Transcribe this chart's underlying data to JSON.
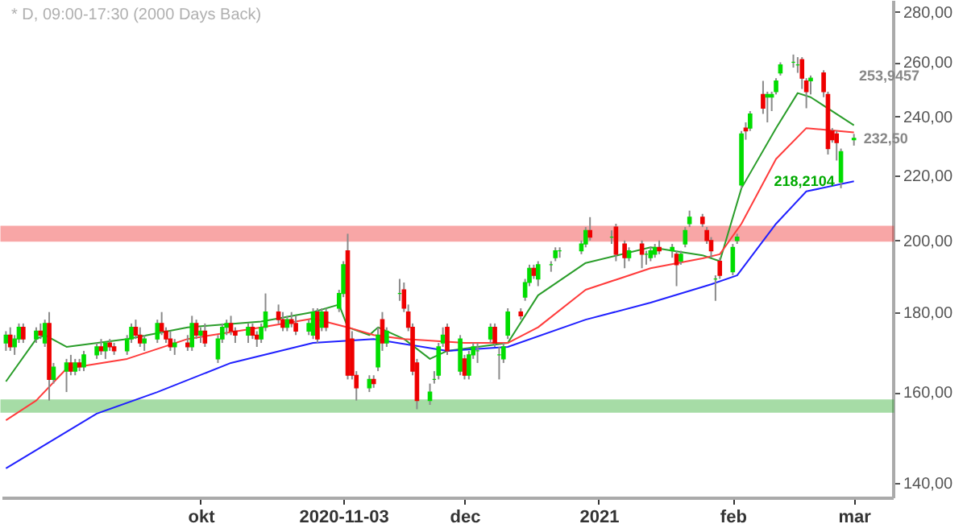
{
  "chart_data": {
    "type": "candlestick",
    "title": "* D, 09:00-17:30 (2000 Days Back)",
    "colors": [
      "#00dd00",
      "#ee0000",
      "#00dd00",
      "#00dd00",
      "#ee0000",
      "#00dd00",
      "#ee0000",
      "#00dd00",
      "#ee0000",
      "#00dd00",
      "#00dd00",
      "#ee0000",
      "#00dd00",
      "#ee0000",
      "#00dd00",
      "#00dd00",
      "#ee0000",
      "#00dd00",
      "#ee0000",
      "#ee0000",
      "#00dd00",
      "#00dd00",
      "#ee0000",
      "#ee0000",
      "#00dd00",
      "#00dd00",
      "#ee0000",
      "#ee0000",
      "#ee0000",
      "#00dd00",
      "#ee0000",
      "#00dd00",
      "#ee0000",
      "#00dd00",
      "#ee0000",
      "#00dd00",
      "#00dd00",
      "#00dd00",
      "#ee0000",
      "#ee0000",
      "#00dd00",
      "#ee0000",
      "#ee0000",
      "#00dd00",
      "#00dd00",
      "#ee0000",
      "#ee0000",
      "#00dd00",
      "#ee0000",
      "#ee0000",
      "#00dd00",
      "#00dd00",
      "#ee0000",
      "#00dd00",
      "#ee0000",
      "#00dd00",
      "#00dd00",
      "#ee0000",
      "#ee0000",
      "#ee0000",
      "#00dd00",
      "#ee0000",
      "#00dd00",
      "#ee0000",
      "#00dd00",
      "#00dd00",
      "#ee0000",
      "#ee0000",
      "#ee0000",
      "#ee0000",
      "#00dd00",
      "#00dd00",
      "#00dd00",
      "#00dd00",
      "#ee0000",
      "#00dd00",
      "#ee0000",
      "#00dd00",
      "#00dd00",
      "#00dd00",
      "#00dd00",
      "#ee0000",
      "#00dd00",
      "#00dd00",
      "#00dd00",
      "#ee0000",
      "#00dd00",
      "#00dd00",
      "#ee0000",
      "#00dd00",
      "#00dd00",
      "#00dd00",
      "#00dd00",
      "#00dd00",
      "#00dd00",
      "#ee0000",
      "#00dd00",
      "#ee0000",
      "#ee0000",
      "#00dd00",
      "#ee0000",
      "#00dd00",
      "#00dd00",
      "#00dd00",
      "#ee0000",
      "#00dd00",
      "#ee0000",
      "#00dd00",
      "#00dd00",
      "#00dd00",
      "#ee0000",
      "#ee0000",
      "#ee0000",
      "#00dd00",
      "#ee0000",
      "#00dd00",
      "#00dd00",
      "#00dd00",
      "#ee0000",
      "#00dd00",
      "#ee0000",
      "#00dd00",
      "#00dd00",
      "#00dd00",
      "#00dd00",
      "#00dd00",
      "#00dd00",
      "#ee0000",
      "#ee0000",
      "#00dd00",
      "#ee0000",
      "#ee0000",
      "#ee0000",
      "#ee0000",
      "#00dd00",
      "#00dd00"
    ],
    "ohlc": [
      [
        172,
        175,
        170,
        174
      ],
      [
        174,
        176,
        170,
        171
      ],
      [
        171,
        174,
        169,
        173
      ],
      [
        173,
        177,
        172,
        176
      ],
      [
        176,
        177,
        172,
        173
      ],
      [
        173,
        176,
        172,
        175
      ],
      [
        175,
        177,
        173,
        174
      ],
      [
        172,
        178,
        171,
        177
      ],
      [
        177,
        180,
        158,
        163
      ],
      [
        163,
        167,
        162,
        166
      ],
      [
        165,
        168,
        160,
        167
      ],
      [
        167,
        169,
        164,
        165
      ],
      [
        165,
        168,
        164,
        167
      ],
      [
        167,
        168,
        165,
        166
      ],
      [
        166,
        170,
        165,
        169
      ],
      [
        169,
        172,
        168,
        171
      ],
      [
        171,
        173,
        169,
        170
      ],
      [
        170,
        172,
        168,
        172
      ],
      [
        172,
        173,
        170,
        171
      ],
      [
        171,
        172,
        169,
        170
      ],
      [
        170,
        174,
        169,
        173
      ],
      [
        173,
        177,
        172,
        176
      ],
      [
        176,
        178,
        173,
        174
      ],
      [
        174,
        176,
        171,
        172
      ],
      [
        172,
        174,
        170,
        173
      ],
      [
        173,
        178,
        172,
        177
      ],
      [
        177,
        180,
        174,
        175
      ],
      [
        175,
        176,
        172,
        173
      ],
      [
        173,
        175,
        170,
        171
      ],
      [
        171,
        173,
        169,
        172
      ],
      [
        172,
        174,
        170,
        171
      ],
      [
        171,
        179,
        170,
        177
      ],
      [
        177,
        178,
        173,
        174
      ],
      [
        174,
        176,
        172,
        175
      ],
      [
        175,
        177,
        171,
        172
      ],
      [
        168,
        174,
        167,
        173
      ],
      [
        173,
        177,
        172,
        176
      ],
      [
        176,
        178,
        174,
        177
      ],
      [
        177,
        179,
        174,
        175
      ],
      [
        175,
        176,
        172,
        174
      ],
      [
        174,
        177,
        172,
        176
      ],
      [
        176,
        177,
        173,
        174
      ],
      [
        174,
        175,
        171,
        173
      ],
      [
        173,
        177,
        172,
        176
      ],
      [
        176,
        185,
        175,
        180
      ],
      [
        180,
        182,
        177,
        178
      ],
      [
        178,
        180,
        175,
        176
      ],
      [
        176,
        179,
        175,
        178
      ],
      [
        178,
        180,
        176,
        177
      ],
      [
        177,
        179,
        174,
        175
      ],
      [
        175,
        178,
        174,
        177
      ],
      [
        174,
        181,
        173,
        180
      ],
      [
        180,
        181,
        172,
        173
      ],
      [
        176,
        181,
        175,
        180
      ],
      [
        180,
        181,
        175,
        176
      ],
      [
        181,
        186,
        180,
        185
      ],
      [
        185,
        194,
        184,
        193
      ],
      [
        197,
        202,
        163,
        164
      ],
      [
        173,
        175,
        163,
        164
      ],
      [
        164,
        165,
        158,
        161
      ],
      [
        161,
        164,
        160,
        163
      ],
      [
        163,
        164,
        161,
        162
      ],
      [
        166,
        176,
        165,
        174
      ],
      [
        178,
        180,
        170,
        172
      ],
      [
        172,
        176,
        171,
        175
      ],
      [
        185,
        189,
        183,
        185
      ],
      [
        186,
        188,
        180,
        181
      ],
      [
        180,
        182,
        175,
        176
      ],
      [
        176,
        177,
        164,
        165
      ],
      [
        167,
        168,
        156,
        158
      ],
      [
        158,
        162,
        157,
        160
      ],
      [
        163,
        165,
        162,
        163
      ],
      [
        164,
        172,
        163,
        171
      ],
      [
        172,
        176,
        171,
        174
      ],
      [
        176,
        177,
        169,
        170
      ],
      [
        165,
        174,
        164,
        173
      ],
      [
        168,
        169,
        163,
        164
      ],
      [
        164,
        170,
        163,
        169
      ],
      [
        169,
        172,
        168,
        171
      ],
      [
        170,
        172,
        167,
        170
      ],
      [
        173,
        177,
        172,
        176
      ],
      [
        176,
        177,
        171,
        172
      ],
      [
        169,
        171,
        163,
        169
      ],
      [
        168,
        172,
        167,
        171
      ],
      [
        174,
        181,
        173,
        180
      ],
      [
        180,
        181,
        178,
        179
      ],
      [
        184,
        189,
        183,
        188
      ],
      [
        188,
        193,
        187,
        192
      ],
      [
        192,
        193,
        189,
        190
      ],
      [
        189,
        194,
        187,
        193
      ],
      [
        193,
        194,
        191,
        193
      ],
      [
        195,
        198,
        194,
        197
      ],
      [
        197,
        198,
        195,
        197
      ],
      [
        197,
        200,
        196,
        199
      ],
      [
        199,
        204,
        198,
        203
      ],
      [
        203,
        207,
        200,
        201
      ],
      [
        201,
        203,
        199,
        201
      ],
      [
        204,
        205,
        194,
        196
      ],
      [
        199,
        200,
        192,
        195
      ],
      [
        195,
        198,
        194,
        197
      ],
      [
        199,
        200,
        192,
        196
      ],
      [
        196,
        197,
        193,
        196
      ],
      [
        195,
        198,
        194,
        197
      ],
      [
        196,
        199,
        195,
        198
      ],
      [
        198,
        200,
        196,
        197
      ],
      [
        197,
        199,
        195,
        198
      ],
      [
        196,
        197,
        187,
        193
      ],
      [
        194,
        197,
        193,
        196
      ],
      [
        199,
        204,
        198,
        203
      ],
      [
        205,
        209,
        204,
        207
      ],
      [
        207,
        208,
        204,
        205
      ],
      [
        203,
        204,
        199,
        200
      ],
      [
        200,
        201,
        195,
        197
      ],
      [
        189,
        190,
        183,
        189
      ],
      [
        194,
        195,
        189,
        190
      ],
      [
        191,
        199,
        190,
        198
      ],
      [
        200,
        202,
        199,
        201
      ],
      [
        217,
        235,
        216,
        234
      ],
      [
        236,
        238,
        232,
        235
      ],
      [
        236,
        242,
        235,
        241
      ],
      [
        248,
        253,
        241,
        243
      ],
      [
        247,
        249,
        238,
        248
      ],
      [
        247,
        249,
        242,
        248
      ],
      [
        249,
        254,
        248,
        253
      ],
      [
        256,
        260,
        255,
        259
      ],
      [
        260,
        263,
        258,
        260
      ],
      [
        259,
        262,
        256,
        259
      ],
      [
        261,
        262,
        250,
        254
      ],
      [
        253,
        254,
        243,
        249
      ],
      [
        253,
        255,
        248,
        254
      ],
      [
        256,
        257,
        247,
        249
      ],
      [
        248,
        249,
        227,
        229
      ],
      [
        235,
        236,
        231,
        232
      ],
      [
        234,
        235,
        225,
        231
      ],
      [
        218,
        229,
        216,
        228
      ],
      [
        232,
        234,
        230,
        232.5
      ]
    ],
    "x": [
      "2020-08-17",
      "2020-08-18",
      "2020-08-19",
      "2020-08-20",
      "2020-08-21",
      "2020-08-24",
      "2020-08-25",
      "2020-08-26",
      "2020-08-27",
      "2020-08-28",
      "2020-08-31",
      "2020-09-01",
      "2020-09-02",
      "2020-09-03",
      "2020-09-04",
      "2020-09-07",
      "2020-09-08",
      "2020-09-09",
      "2020-09-10",
      "2020-09-11",
      "2020-09-14",
      "2020-09-15",
      "2020-09-16",
      "2020-09-17",
      "2020-09-18",
      "2020-09-21",
      "2020-09-22",
      "2020-09-23",
      "2020-09-24",
      "2020-09-25",
      "2020-09-28",
      "2020-09-29",
      "2020-09-30",
      "2020-10-01",
      "2020-10-02",
      "2020-10-05",
      "2020-10-06",
      "2020-10-07",
      "2020-10-08",
      "2020-10-09",
      "2020-10-12",
      "2020-10-13",
      "2020-10-14",
      "2020-10-15",
      "2020-10-16",
      "2020-10-19",
      "2020-10-20",
      "2020-10-21",
      "2020-10-22",
      "2020-10-23",
      "2020-10-26",
      "2020-10-27",
      "2020-10-28",
      "2020-10-29",
      "2020-10-30",
      "2020-11-02",
      "2020-11-03",
      "2020-11-04",
      "2020-11-05",
      "2020-11-06",
      "2020-11-09",
      "2020-11-10",
      "2020-11-11",
      "2020-11-12",
      "2020-11-13",
      "2020-11-16",
      "2020-11-17",
      "2020-11-18",
      "2020-11-19",
      "2020-11-20",
      "2020-11-23",
      "2020-11-24",
      "2020-11-25",
      "2020-11-26",
      "2020-11-27",
      "2020-11-30",
      "2020-12-01",
      "2020-12-02",
      "2020-12-03",
      "2020-12-04",
      "2020-12-07",
      "2020-12-08",
      "2020-12-09",
      "2020-12-10",
      "2020-12-11",
      "2020-12-14",
      "2020-12-15",
      "2020-12-16",
      "2020-12-17",
      "2020-12-18",
      "2020-12-21",
      "2020-12-22",
      "2020-12-23",
      "2020-12-28",
      "2020-12-29",
      "2020-12-30",
      "2021-01-04",
      "2021-01-05",
      "2021-01-07",
      "2021-01-08",
      "2021-01-11",
      "2021-01-12",
      "2021-01-13",
      "2021-01-14",
      "2021-01-15",
      "2021-01-18",
      "2021-01-19",
      "2021-01-20",
      "2021-01-21",
      "2021-01-22",
      "2021-01-25",
      "2021-01-26",
      "2021-01-27",
      "2021-01-28",
      "2021-01-29",
      "2021-02-01",
      "2021-02-02",
      "2021-02-03",
      "2021-02-04",
      "2021-02-05",
      "2021-02-08",
      "2021-02-09",
      "2021-02-10",
      "2021-02-11",
      "2021-02-12",
      "2021-02-15",
      "2021-02-16",
      "2021-02-17",
      "2021-02-18",
      "2021-02-19",
      "2021-02-22",
      "2021-02-23",
      "2021-02-24",
      "2021-02-25",
      "2021-02-26",
      "2021-03-01"
    ],
    "series": [
      {
        "type": "line",
        "color": "#2a9d2a",
        "x": [
          "2020-08-17",
          "2020-08-24",
          "2020-08-26",
          "2020-08-31",
          "2020-09-14",
          "2020-09-28",
          "2020-10-15",
          "2020-10-27",
          "2020-11-02",
          "2020-11-04",
          "2020-11-09",
          "2020-11-11",
          "2020-11-17",
          "2020-11-23",
          "2020-11-27",
          "2020-12-11",
          "2020-12-18",
          "2020-12-29",
          "2021-01-13",
          "2021-01-25",
          "2021-01-29",
          "2021-02-03",
          "2021-02-11",
          "2021-02-16",
          "2021-02-19",
          "2021-03-01"
        ],
        "values": [
          162.5,
          173,
          174,
          171,
          173,
          176,
          177.5,
          180,
          182,
          176,
          174,
          176,
          173,
          168,
          170,
          172,
          184.5,
          193.5,
          198,
          195.7,
          194,
          216,
          236,
          248.5,
          247,
          237
        ]
      },
      {
        "type": "line",
        "color": "#ff3b3b",
        "x": [
          "2020-08-17",
          "2020-08-24",
          "2020-08-31",
          "2020-09-14",
          "2020-09-28",
          "2020-10-15",
          "2020-10-27",
          "2020-11-04",
          "2020-11-10",
          "2020-11-17",
          "2020-12-01",
          "2020-12-11",
          "2020-12-18",
          "2020-12-29",
          "2021-01-13",
          "2021-01-25",
          "2021-01-29",
          "2021-02-03",
          "2021-02-11",
          "2021-02-18",
          "2021-03-01"
        ],
        "values": [
          153.5,
          158,
          165.6,
          168,
          173,
          176,
          178.3,
          176,
          174,
          173,
          172,
          172,
          176,
          186,
          192,
          194.8,
          196,
          205,
          225.5,
          236,
          234.5
        ]
      },
      {
        "type": "line",
        "color": "#2020ff",
        "x": [
          "2020-08-17",
          "2020-09-07",
          "2020-09-21",
          "2020-10-08",
          "2020-10-27",
          "2020-11-10",
          "2020-11-27",
          "2020-12-11",
          "2020-12-29",
          "2021-01-13",
          "2021-01-27",
          "2021-02-02",
          "2021-02-11",
          "2021-02-18",
          "2021-03-01"
        ],
        "values": [
          143,
          155,
          160,
          167,
          172,
          173,
          170,
          171,
          178,
          182.5,
          187.5,
          190,
          205,
          215,
          218.2
        ]
      }
    ],
    "bands": [
      {
        "axis": "y",
        "from": 200,
        "to": 204,
        "color": "#ee2222"
      },
      {
        "axis": "y",
        "from": 155.5,
        "to": 158,
        "color": "#22aa22"
      }
    ],
    "annotations": [
      "253,9457",
      {
        "text": "232,50",
        "x": "2021-03-01",
        "y": 232.5
      },
      {
        "text": "218,2104",
        "x": "2021-03-01",
        "y": 218.2104
      }
    ],
    "log": true,
    "ylim": [
      137,
      285
    ],
    "yticks": [
      {
        "value": 140,
        "label": "140,00"
      },
      {
        "value": 160,
        "label": "160,00"
      },
      {
        "value": 180,
        "label": "180,00"
      },
      {
        "value": 200,
        "label": "200,00"
      },
      {
        "value": 220,
        "label": "220,00"
      },
      {
        "value": 240,
        "label": "240,00"
      },
      {
        "value": 260,
        "label": "260,00"
      },
      {
        "value": 280,
        "label": "280,00"
      }
    ],
    "xlim": [
      "2020-08-16",
      "2021-03-10"
    ],
    "xticks": [
      {
        "value": "2020-10-01",
        "label": "okt"
      },
      "2020-11-03",
      {
        "value": "2020-12-01",
        "label": "dec"
      },
      {
        "value": "2021-01-01",
        "label": "2021"
      },
      {
        "value": "2021-02-01",
        "label": "feb"
      },
      {
        "value": "2021-03-01",
        "label": "mar"
      }
    ],
    "grid": false
  }
}
